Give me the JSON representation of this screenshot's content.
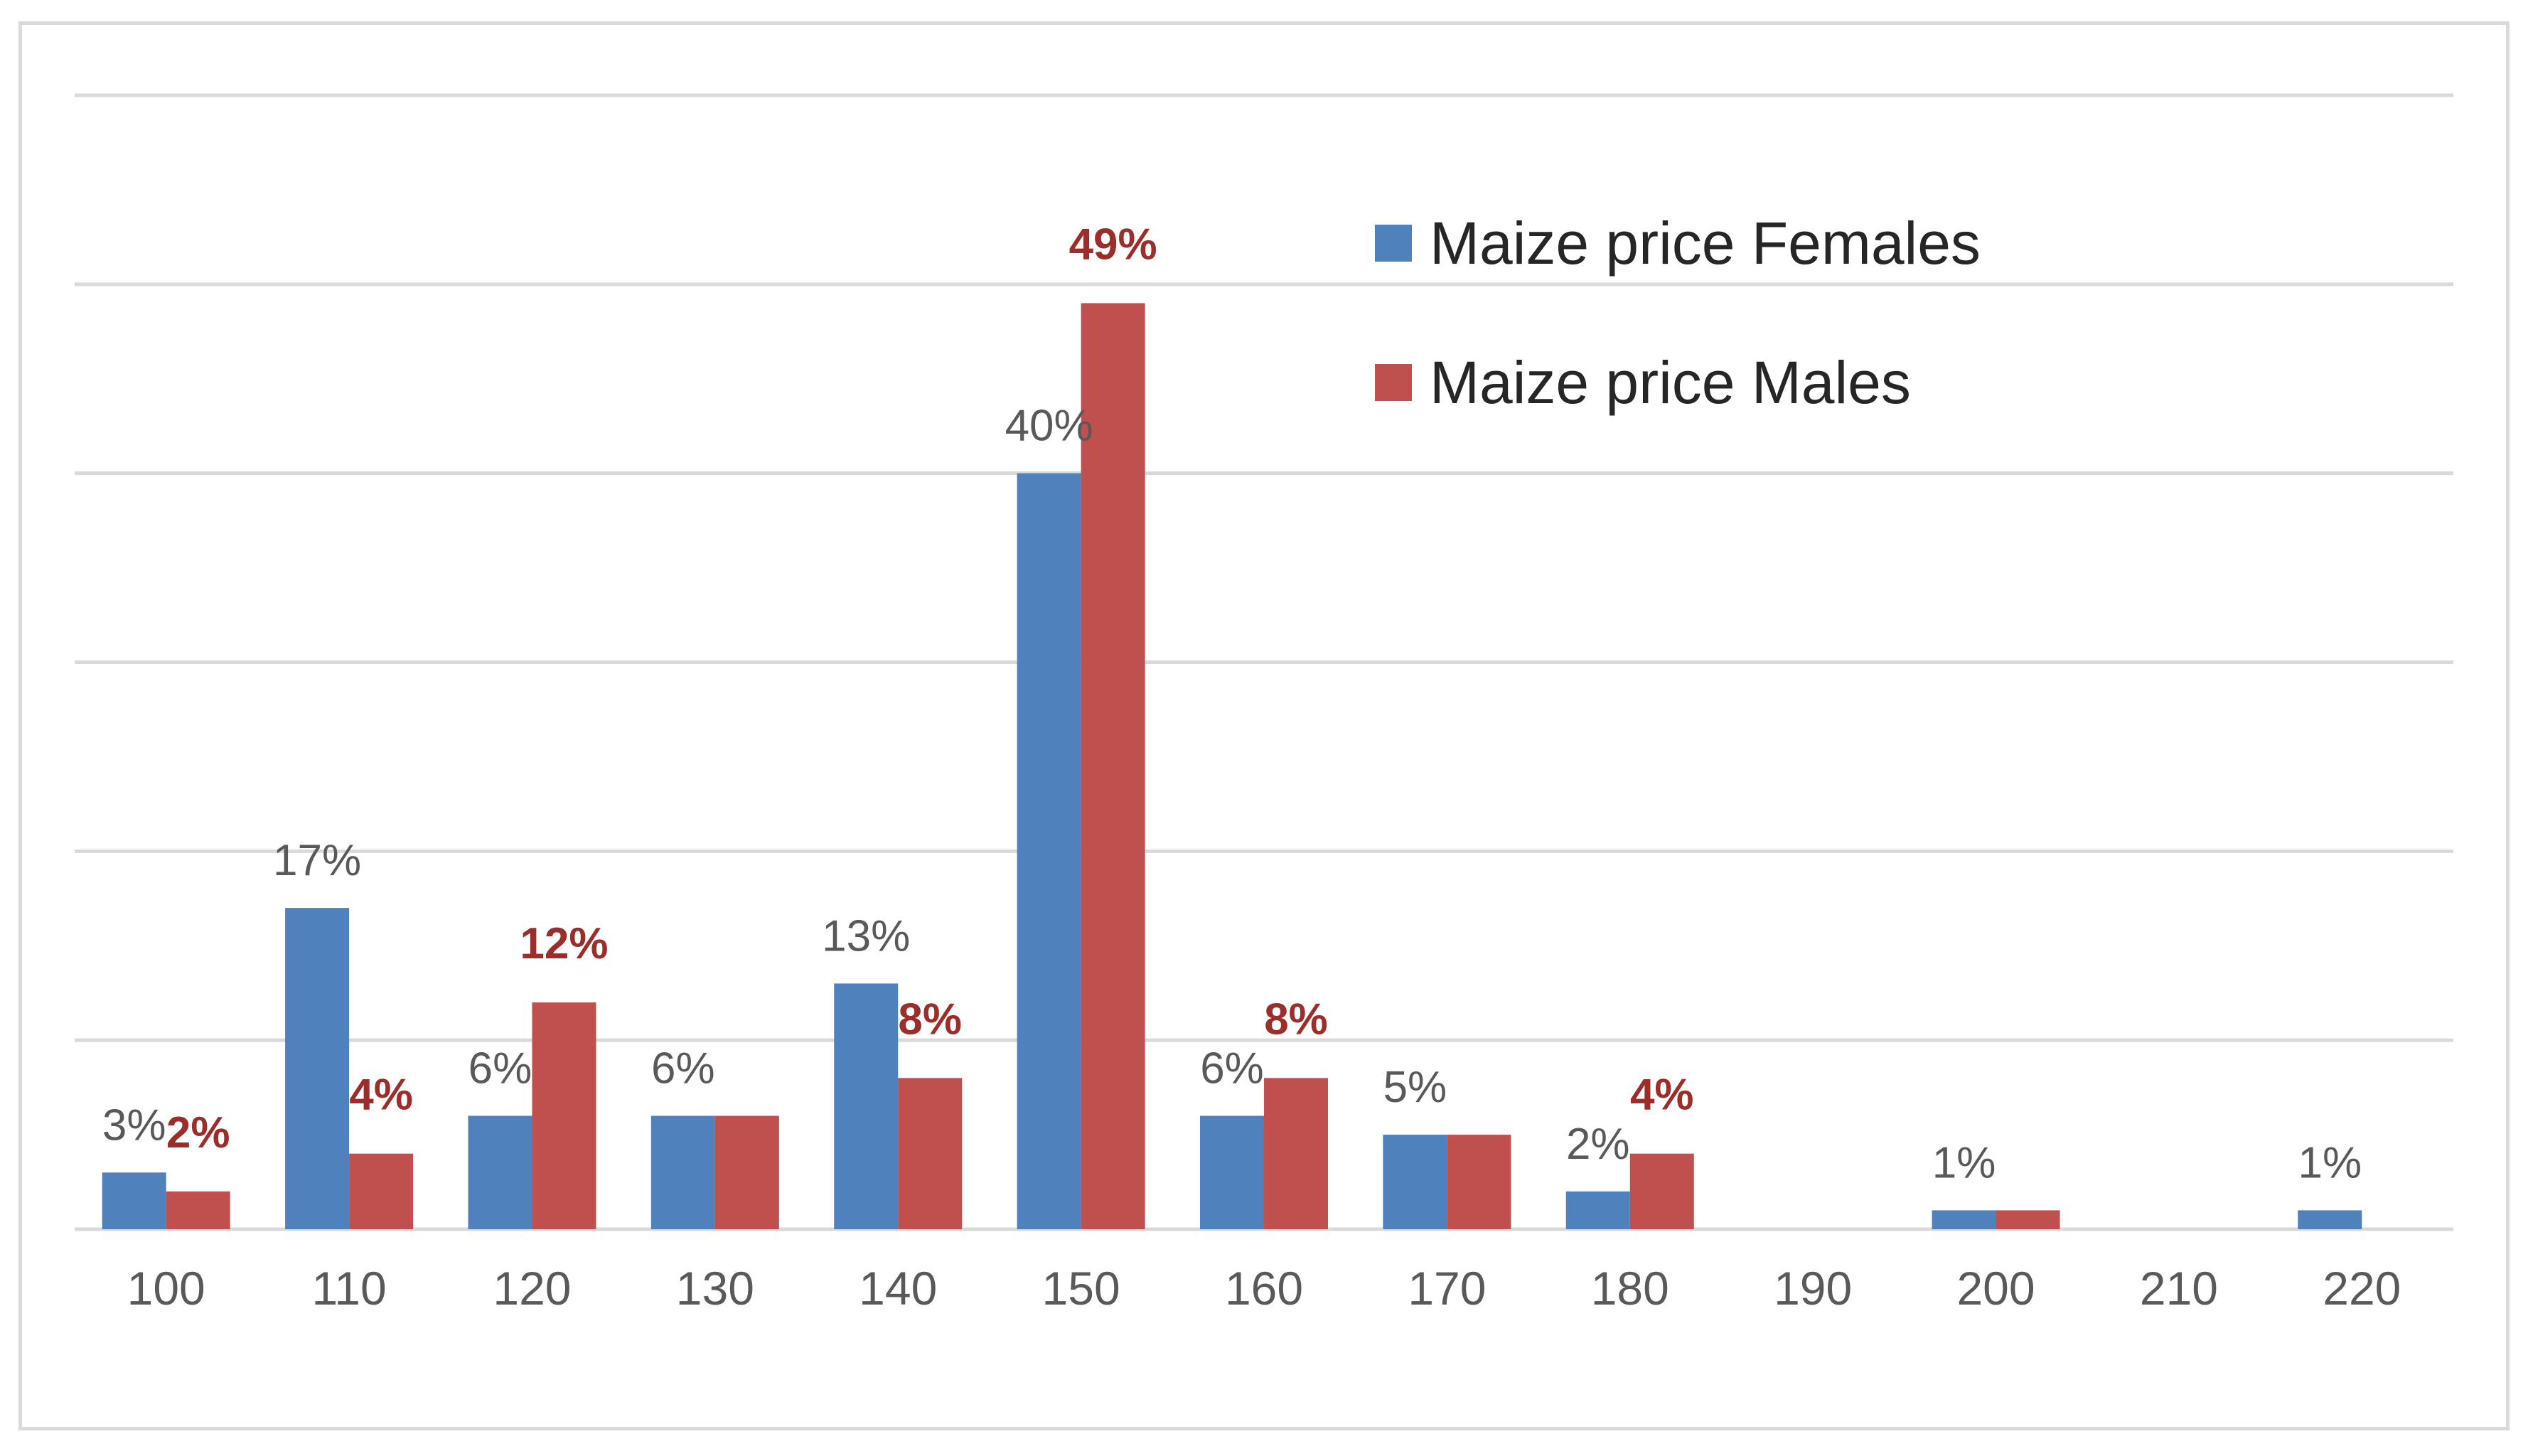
{
  "chart_data": {
    "type": "bar",
    "title": "",
    "xlabel": "",
    "ylabel": "",
    "categories": [
      "100",
      "110",
      "120",
      "130",
      "140",
      "150",
      "160",
      "170",
      "180",
      "190",
      "200",
      "210",
      "220"
    ],
    "series": [
      {
        "name": "Maize price Females",
        "color": "#4f81bd",
        "values": [
          3,
          17,
          6,
          6,
          13,
          40,
          6,
          5,
          2,
          null,
          1,
          null,
          1
        ],
        "labels": [
          "3%",
          "17%",
          "6%",
          "6%",
          "13%",
          "40%",
          "6%",
          "5%",
          "2%",
          "",
          "1%",
          "",
          "1%"
        ]
      },
      {
        "name": "Maize price Males",
        "color": "#c0504d",
        "values": [
          2,
          4,
          12,
          6,
          8,
          49,
          8,
          5,
          4,
          null,
          1,
          null,
          null
        ],
        "labels": [
          "2%",
          "4%",
          "12%",
          "",
          "8%",
          "49%",
          "8%",
          "",
          "4%",
          "",
          "",
          "",
          ""
        ]
      }
    ],
    "male_label_color": "#9b2d2a",
    "ylim": [
      0,
      60
    ],
    "grid": true,
    "legend": "top-right"
  }
}
